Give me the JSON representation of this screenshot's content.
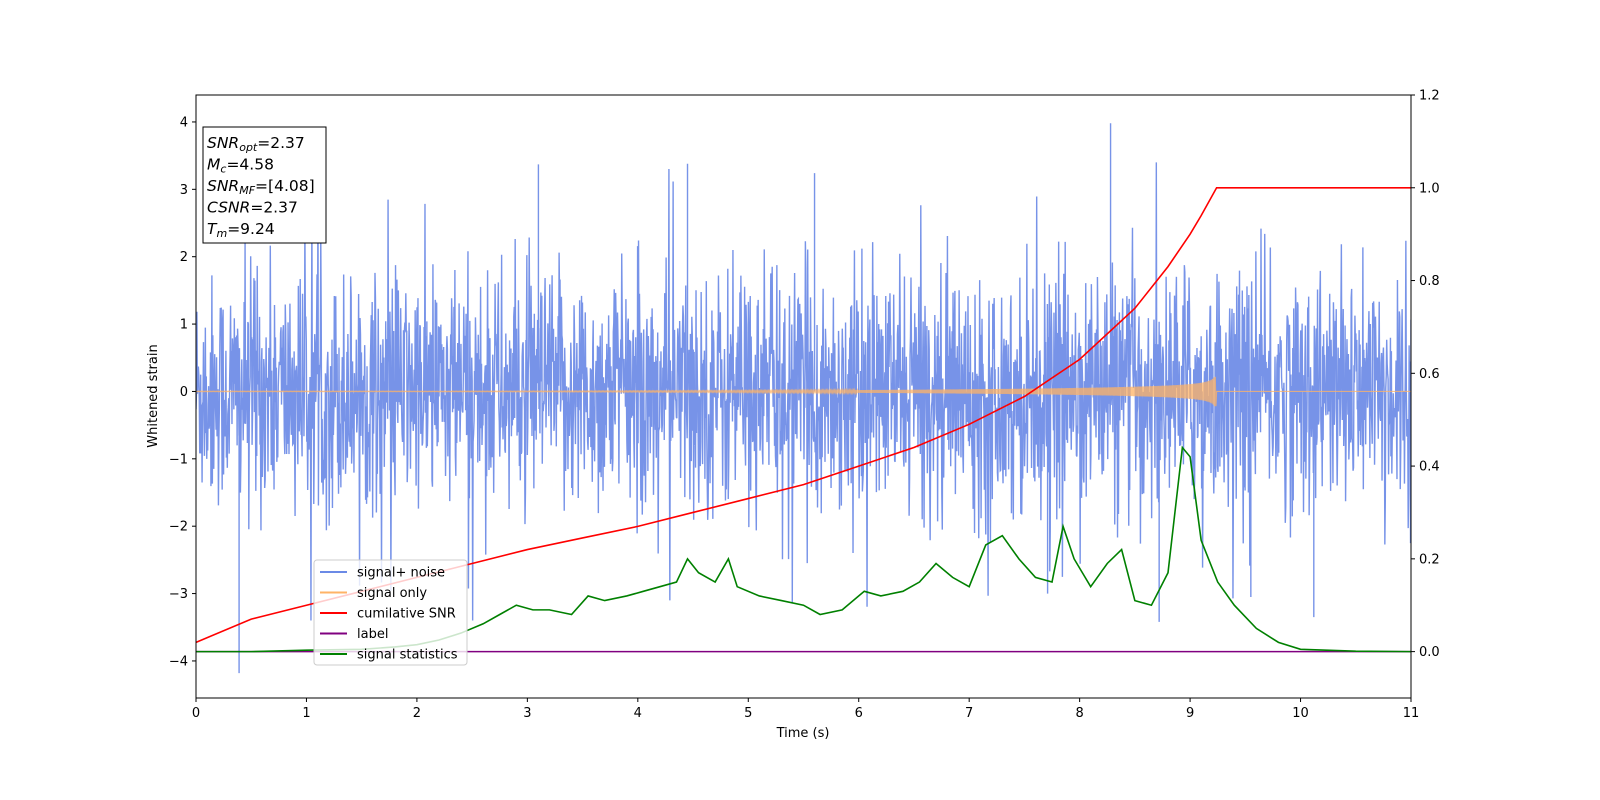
{
  "chart_data": {
    "type": "line",
    "xlabel": "Time (s)",
    "ylabel": "Whitened strain",
    "xlim": [
      0,
      11
    ],
    "ylim": [
      -4.55,
      4.4
    ],
    "y2lim": [
      -0.1,
      1.2
    ],
    "x_ticks": [
      0,
      1,
      2,
      3,
      4,
      5,
      6,
      7,
      8,
      9,
      10,
      11
    ],
    "y_ticks": [
      -4,
      -3,
      -2,
      -1,
      0,
      1,
      2,
      3,
      4
    ],
    "y2_ticks": [
      0.0,
      0.2,
      0.4,
      0.6,
      0.8,
      1.0,
      1.2
    ],
    "grid": false,
    "legend_position": "lower-left",
    "annotation": [
      {
        "main": "SNR",
        "sub": "opt",
        "value": "=2.37"
      },
      {
        "main": "M",
        "sub": "c",
        "value": "=4.58"
      },
      {
        "main": "SNR",
        "sub": "MF",
        "value": "=[4.08]"
      },
      {
        "main": "CSNR",
        "sub": "",
        "value": "=2.37"
      },
      {
        "main": "T",
        "sub": "m",
        "value": "=9.24"
      }
    ],
    "series": [
      {
        "name": "signal+ noise",
        "color": "#6b8ae6",
        "axis": "left",
        "noise_sigma": 1.0,
        "sample_spikes": [
          {
            "x": 0.39,
            "y": -4.18
          },
          {
            "x": 8.28,
            "y": 3.98
          },
          {
            "x": 4.45,
            "y": 3.38
          },
          {
            "x": 9.55,
            "y": -3.05
          },
          {
            "x": 10.12,
            "y": -3.35
          },
          {
            "x": 7.71,
            "y": -3.0
          },
          {
            "x": 3.1,
            "y": 3.37
          },
          {
            "x": 5.6,
            "y": 3.24
          },
          {
            "x": 8.72,
            "y": -3.42
          }
        ]
      },
      {
        "name": "signal only",
        "color": "#ffb366",
        "axis": "left",
        "t_merge": 9.24,
        "peak_amplitude": 0.22
      },
      {
        "name": "cumilative SNR",
        "color": "#ff0000",
        "axis": "right",
        "x": [
          0,
          0.5,
          1,
          1.5,
          2,
          2.5,
          3,
          3.5,
          4,
          4.5,
          5,
          5.5,
          6,
          6.5,
          7,
          7.5,
          8,
          8.5,
          8.8,
          9.0,
          9.1,
          9.24,
          11
        ],
        "y": [
          0.02,
          0.07,
          0.1,
          0.13,
          0.16,
          0.19,
          0.22,
          0.245,
          0.27,
          0.3,
          0.33,
          0.36,
          0.4,
          0.44,
          0.49,
          0.55,
          0.63,
          0.74,
          0.83,
          0.9,
          0.94,
          1.0,
          1.0
        ]
      },
      {
        "name": "label",
        "color": "#800080",
        "axis": "right",
        "x": [
          0,
          11
        ],
        "y": [
          0,
          0
        ]
      },
      {
        "name": "signal statistics",
        "color": "#008000",
        "axis": "right",
        "x": [
          0,
          0.5,
          1.0,
          1.5,
          1.8,
          2.0,
          2.2,
          2.4,
          2.6,
          2.75,
          2.9,
          3.05,
          3.2,
          3.4,
          3.55,
          3.7,
          3.9,
          4.05,
          4.2,
          4.35,
          4.45,
          4.55,
          4.7,
          4.82,
          4.9,
          5.1,
          5.3,
          5.5,
          5.65,
          5.85,
          6.05,
          6.2,
          6.4,
          6.55,
          6.7,
          6.85,
          7.0,
          7.15,
          7.3,
          7.45,
          7.6,
          7.75,
          7.85,
          7.95,
          8.1,
          8.25,
          8.38,
          8.5,
          8.65,
          8.8,
          8.93,
          9.0,
          9.1,
          9.25,
          9.4,
          9.6,
          9.8,
          10.0,
          10.5,
          11.0
        ],
        "y": [
          0.0,
          0.0,
          0.003,
          0.005,
          0.01,
          0.015,
          0.025,
          0.04,
          0.06,
          0.08,
          0.1,
          0.09,
          0.09,
          0.08,
          0.12,
          0.11,
          0.12,
          0.13,
          0.14,
          0.15,
          0.2,
          0.17,
          0.15,
          0.2,
          0.14,
          0.12,
          0.11,
          0.1,
          0.08,
          0.09,
          0.13,
          0.12,
          0.13,
          0.15,
          0.19,
          0.16,
          0.14,
          0.23,
          0.25,
          0.2,
          0.16,
          0.15,
          0.27,
          0.2,
          0.14,
          0.19,
          0.22,
          0.11,
          0.1,
          0.17,
          0.44,
          0.42,
          0.24,
          0.15,
          0.1,
          0.05,
          0.02,
          0.005,
          0.001,
          0.0
        ]
      }
    ]
  }
}
